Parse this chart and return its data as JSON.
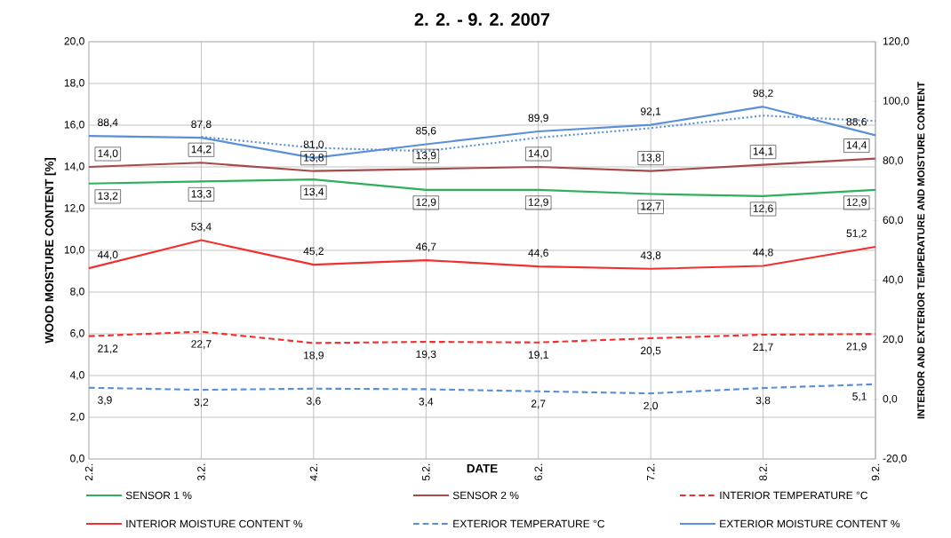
{
  "chart_data": {
    "type": "line",
    "title": "2. 2. - 9. 2. 2007",
    "xlabel": "DATE",
    "ylabel": "WOOD MOISTURE CONTENT  [%]",
    "y2label": "INTERIOR AND EXTERIOR TEMPERATURE AND MOISTURE CONTENT",
    "categories": [
      "2.2.",
      "3.2.",
      "4.2.",
      "5.2.",
      "6.2.",
      "7.2.",
      "8.2.",
      "9.2."
    ],
    "series": [
      {
        "name": "SENSOR 1 %",
        "color": "#2eb05a",
        "values": [
          13.2,
          13.3,
          13.4,
          12.9,
          12.9,
          12.7,
          12.6,
          12.9
        ],
        "value_labels": [
          "13,2",
          "13,3",
          "13,4",
          "12,9",
          "12,9",
          "12,7",
          "12,6",
          "12,9"
        ]
      },
      {
        "name": "SENSOR 2 %",
        "color": "#a84848",
        "values": [
          14.0,
          14.2,
          13.8,
          13.9,
          14.0,
          13.8,
          14.1,
          14.4
        ],
        "value_labels": [
          "14,0",
          "14,2",
          "13,8",
          "13,9",
          "14,0",
          "13,8",
          "14,1",
          "14,4"
        ]
      },
      {
        "name": "INTERIOR TEMPERATURE °C",
        "color": "#f03030",
        "axis": "y2",
        "line_style": "dashed",
        "values": [
          21.2,
          22.7,
          18.9,
          19.3,
          19.1,
          20.5,
          21.7,
          21.9
        ],
        "value_labels": [
          "21,2",
          "22,7",
          "18,9",
          "19,3",
          "19,1",
          "20,5",
          "21,7",
          "21,9"
        ]
      },
      {
        "name": "INTERIOR MOISTURE CONTENT %",
        "color": "#f03030",
        "axis": "y2",
        "values": [
          44.0,
          53.4,
          45.2,
          46.7,
          44.6,
          43.8,
          44.8,
          51.2
        ],
        "value_labels": [
          "44,0",
          "53,4",
          "45,2",
          "46,7",
          "44,6",
          "43,8",
          "44,8",
          "51,2"
        ]
      },
      {
        "name": "EXTERIOR TEMPERATURE °C",
        "color": "#5b8fd6",
        "axis": "y2",
        "line_style": "dashed",
        "values": [
          3.9,
          3.2,
          3.6,
          3.4,
          2.7,
          2.0,
          3.8,
          5.1
        ],
        "value_labels": [
          "3,9",
          "3,2",
          "3,6",
          "3,4",
          "2,7",
          "2,0",
          "3,8",
          "5,1"
        ]
      },
      {
        "name": "EXTERIOR MOISTURE CONTENT %",
        "color": "#5b8fd6",
        "axis": "y2",
        "values": [
          88.4,
          87.8,
          81.0,
          85.6,
          89.9,
          92.1,
          98.2,
          88.6
        ],
        "value_labels": [
          "88,4",
          "87,8",
          "81,0",
          "85,6",
          "89,9",
          "92,1",
          "98,2",
          "88,6"
        ]
      },
      {
        "type": "line",
        "color": "#5b8fd6",
        "axis": "y2",
        "line_style": "dotted",
        "values": [
          null,
          88.1,
          84.4,
          83.3,
          87.8,
          91.0,
          95.2,
          93.4
        ]
      }
    ],
    "ylim": [
      0,
      20
    ],
    "yticks": [
      {
        "value": 0,
        "label": "0,0"
      },
      {
        "value": 2,
        "label": "2,0"
      },
      {
        "value": 4,
        "label": "4,0"
      },
      {
        "value": 6,
        "label": "6,0"
      },
      {
        "value": 8,
        "label": "8,0"
      },
      {
        "value": 10,
        "label": "10,0"
      },
      {
        "value": 12,
        "label": "12,0"
      },
      {
        "value": 14,
        "label": "14,0"
      },
      {
        "value": 16,
        "label": "16,0"
      },
      {
        "value": 18,
        "label": "18,0"
      },
      {
        "value": 20,
        "label": "20,0"
      }
    ],
    "y2lim": [
      -20,
      120
    ],
    "y2ticks": [
      {
        "value": -20,
        "label": "-20,0"
      },
      {
        "value": 0,
        "label": "0,0"
      },
      {
        "value": 20,
        "label": "20,0"
      },
      {
        "value": 40,
        "label": "40,0"
      },
      {
        "value": 60,
        "label": "60,0"
      },
      {
        "value": 80,
        "label": "80,0"
      },
      {
        "value": 100,
        "label": "100,0"
      },
      {
        "value": 120,
        "label": "120,0"
      }
    ],
    "grid": true,
    "legend": "bottom",
    "marker": "none"
  }
}
